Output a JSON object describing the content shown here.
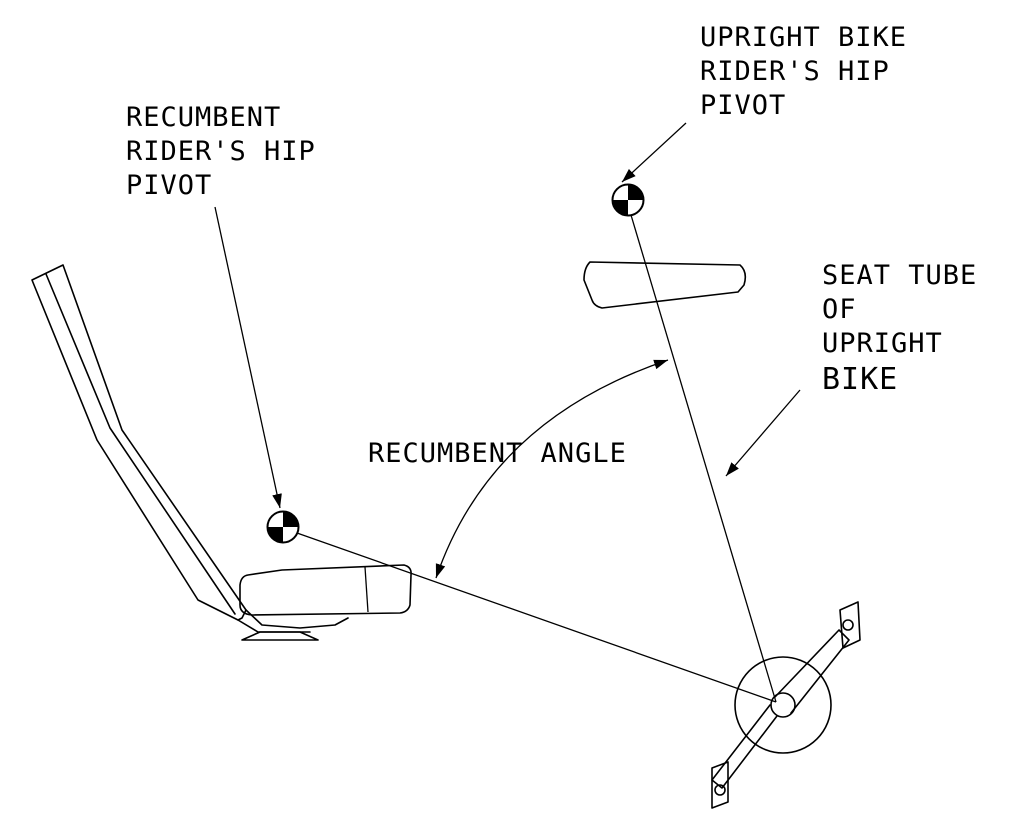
{
  "labels": {
    "upright_hip": [
      "UPRIGHT BIKE",
      "RIDER'S HIP",
      "PIVOT"
    ],
    "recumbent_hip": [
      "RECUMBENT",
      "RIDER'S HIP",
      "PIVOT"
    ],
    "seat_tube": [
      "SEAT TUBE",
      "OF",
      "UPRIGHT",
      "BIKE"
    ],
    "angle": "RECUMBENT ANGLE"
  }
}
